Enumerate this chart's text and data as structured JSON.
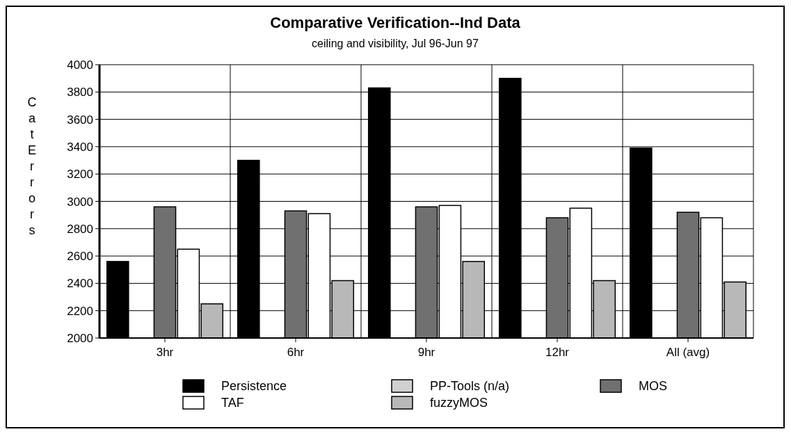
{
  "chart_data": {
    "type": "bar",
    "title": "Comparative Verification--Ind Data",
    "subtitle": "ceiling and visibility, Jul 96-Jun 97",
    "ylabel": "Cat Errors",
    "categories": [
      "3hr",
      "6hr",
      "9hr",
      "12hr",
      "All (avg)"
    ],
    "series": [
      {
        "name": "Persistence",
        "color": "#000000",
        "values": [
          2560,
          3300,
          3830,
          3900,
          3390
        ]
      },
      {
        "name": "PP-Tools (n/a)",
        "color": "#d0d0d0",
        "values": [
          null,
          null,
          null,
          null,
          null
        ]
      },
      {
        "name": "MOS",
        "color": "#707070",
        "values": [
          2960,
          2930,
          2960,
          2880,
          2920
        ]
      },
      {
        "name": "TAF",
        "color": "#ffffff",
        "values": [
          2650,
          2910,
          2970,
          2950,
          2880
        ]
      },
      {
        "name": "fuzzyMOS",
        "color": "#b8b8b8",
        "values": [
          2250,
          2420,
          2560,
          2420,
          2410
        ]
      }
    ],
    "ylim": [
      2000,
      4000
    ],
    "yticks": [
      2000,
      2200,
      2400,
      2600,
      2800,
      3000,
      3200,
      3400,
      3600,
      3800,
      4000
    ],
    "grid": true,
    "legend": "bottom"
  }
}
